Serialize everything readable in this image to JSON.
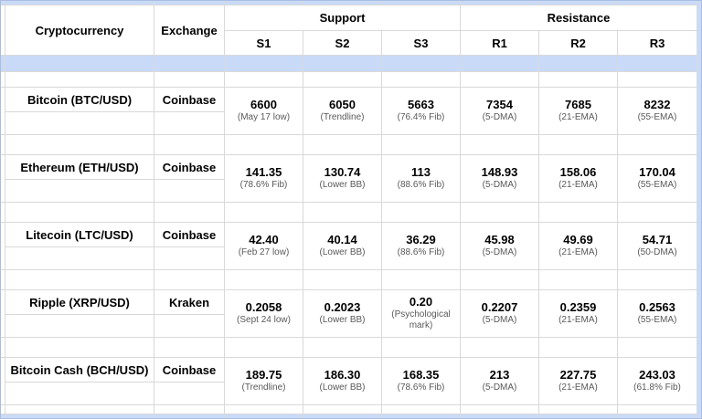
{
  "colors": {
    "band_blue": "#c9daf8",
    "gridline": "#d9d9d9",
    "note_text": "#595959"
  },
  "header": {
    "cryptocurrency": "Cryptocurrency",
    "exchange": "Exchange",
    "support": "Support",
    "resistance": "Resistance",
    "s1": "S1",
    "s2": "S2",
    "s3": "S3",
    "r1": "R1",
    "r2": "R2",
    "r3": "R3"
  },
  "rows": [
    {
      "name": "Bitcoin (BTC/USD)",
      "exchange": "Coinbase",
      "cells": [
        {
          "value": "6600",
          "note": "(May 17 low)"
        },
        {
          "value": "6050",
          "note": "(Trendline)"
        },
        {
          "value": "5663",
          "note": "(76.4% Fib)"
        },
        {
          "value": "7354",
          "note": "(5-DMA)"
        },
        {
          "value": "7685",
          "note": "(21-EMA)"
        },
        {
          "value": "8232",
          "note": "(55-EMA)"
        }
      ]
    },
    {
      "name": "Ethereum (ETH/USD)",
      "exchange": "Coinbase",
      "cells": [
        {
          "value": "141.35",
          "note": "(78.6% Fib)"
        },
        {
          "value": "130.74",
          "note": "(Lower BB)"
        },
        {
          "value": "113",
          "note": "(88.6% Fib)"
        },
        {
          "value": "148.93",
          "note": "(5-DMA)"
        },
        {
          "value": "158.06",
          "note": "(21-EMA)"
        },
        {
          "value": "170.04",
          "note": "(55-EMA)"
        }
      ]
    },
    {
      "name": "Litecoin (LTC/USD)",
      "exchange": "Coinbase",
      "cells": [
        {
          "value": "42.40",
          "note": "(Feb 27 low)"
        },
        {
          "value": "40.14",
          "note": "(Lower BB)"
        },
        {
          "value": "36.29",
          "note": "(88.6% Fib)"
        },
        {
          "value": "45.98",
          "note": "(5-DMA)"
        },
        {
          "value": "49.69",
          "note": "(21-EMA)"
        },
        {
          "value": "54.71",
          "note": "(50-DMA)"
        }
      ]
    },
    {
      "name": "Ripple (XRP/USD)",
      "exchange": "Kraken",
      "cells": [
        {
          "value": "0.2058",
          "note": "(Sept 24 low)"
        },
        {
          "value": "0.2023",
          "note": "(Lower BB)"
        },
        {
          "value": "0.20",
          "note": "(Psychological mark)"
        },
        {
          "value": "0.2207",
          "note": "(5-DMA)"
        },
        {
          "value": "0.2359",
          "note": "(21-EMA)"
        },
        {
          "value": "0.2563",
          "note": "(55-EMA)"
        }
      ]
    },
    {
      "name": "Bitcoin Cash (BCH/USD)",
      "exchange": "Coinbase",
      "cells": [
        {
          "value": "189.75",
          "note": "(Trendline)"
        },
        {
          "value": "186.30",
          "note": "(Lower BB)"
        },
        {
          "value": "168.35",
          "note": "(78.6% Fib)"
        },
        {
          "value": "213",
          "note": "(5-DMA)"
        },
        {
          "value": "227.75",
          "note": "(21-EMA)"
        },
        {
          "value": "243.03",
          "note": "(61.8% Fib)"
        }
      ]
    }
  ]
}
